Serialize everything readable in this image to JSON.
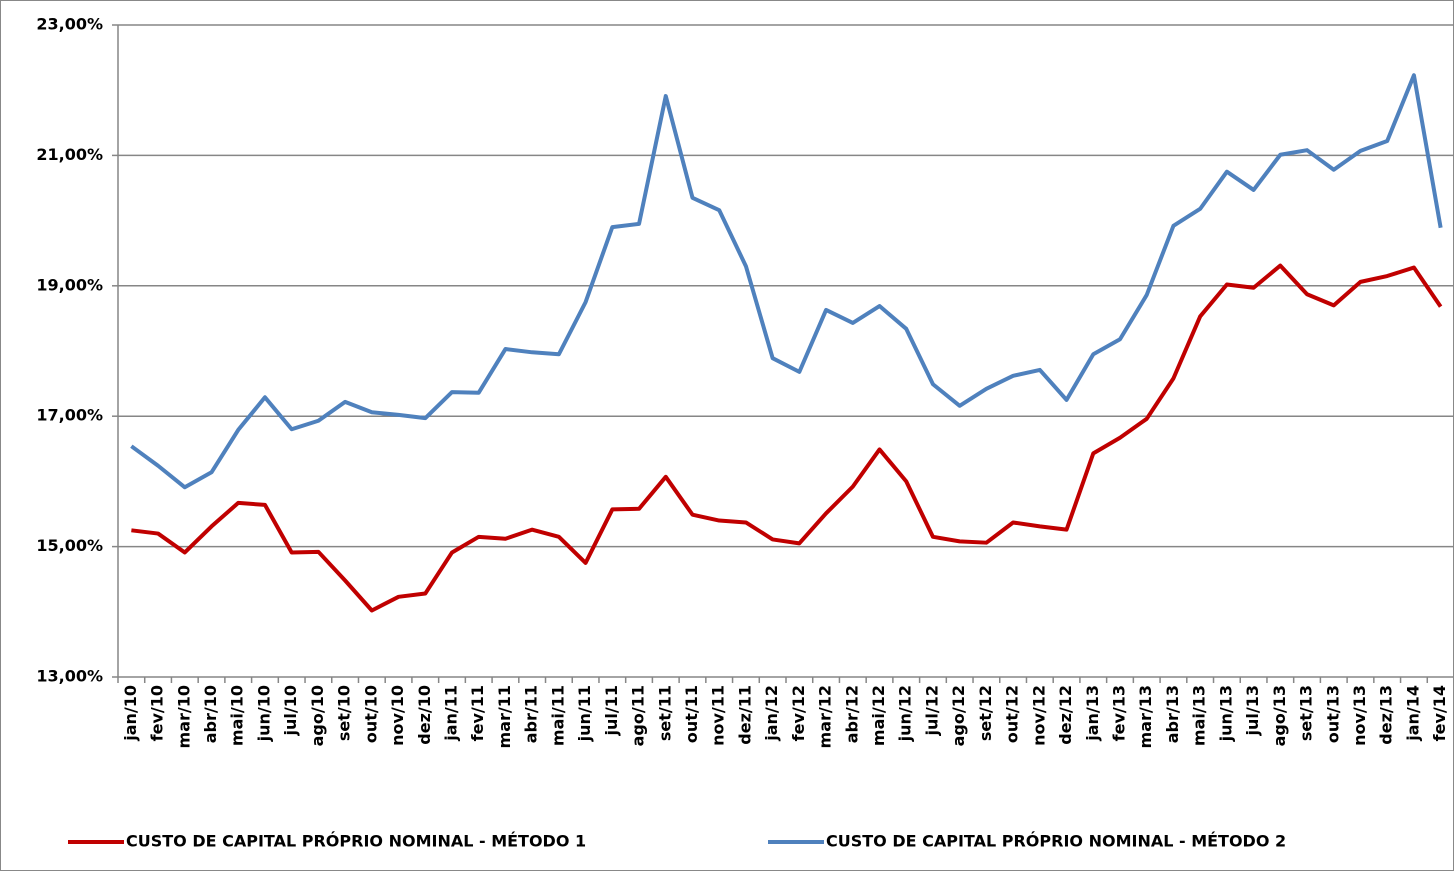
{
  "chart_data": {
    "type": "line",
    "categories": [
      "jan/10",
      "fev/10",
      "mar/10",
      "abr/10",
      "mai/10",
      "jun/10",
      "jul/10",
      "ago/10",
      "set/10",
      "out/10",
      "nov/10",
      "dez/10",
      "jan/11",
      "fev/11",
      "mar/11",
      "abr/11",
      "mai/11",
      "jun/11",
      "jul/11",
      "ago/11",
      "set/11",
      "out/11",
      "nov/11",
      "dez/11",
      "jan/12",
      "fev/12",
      "mar/12",
      "abr/12",
      "mai/12",
      "jun/12",
      "jul/12",
      "ago/12",
      "set/12",
      "out/12",
      "nov/12",
      "dez/12",
      "jan/13",
      "fev/13",
      "mar/13",
      "abr/13",
      "mai/13",
      "jun/13",
      "jul/13",
      "ago/13",
      "set/13",
      "out/13",
      "nov/13",
      "dez/13",
      "jan/14",
      "fev/14"
    ],
    "series": [
      {
        "name": "CUSTO DE CAPITAL PRÓPRIO NOMINAL - MÉTODO 1",
        "color": "#c00000",
        "values": [
          15.25,
          15.2,
          14.91,
          15.31,
          15.67,
          15.64,
          14.91,
          14.92,
          14.48,
          14.02,
          14.23,
          14.28,
          14.91,
          15.15,
          15.12,
          15.26,
          15.15,
          14.75,
          15.57,
          15.58,
          16.07,
          15.49,
          15.4,
          15.37,
          15.11,
          15.05,
          15.51,
          15.92,
          16.49,
          16.0,
          15.15,
          15.08,
          15.06,
          15.37,
          15.31,
          15.26,
          16.43,
          16.67,
          16.96,
          17.58,
          18.53,
          19.02,
          18.97,
          19.31,
          18.87,
          18.7,
          19.06,
          19.15,
          19.28,
          18.68
        ]
      },
      {
        "name": "CUSTO DE CAPITAL PRÓPRIO NOMINAL - MÉTODO 2",
        "color": "#4f81bd",
        "values": [
          16.54,
          16.24,
          15.91,
          16.14,
          16.79,
          17.29,
          16.8,
          16.93,
          17.22,
          17.06,
          17.02,
          16.97,
          17.37,
          17.36,
          18.03,
          17.98,
          17.95,
          18.75,
          19.9,
          19.95,
          21.91,
          20.35,
          20.16,
          19.3,
          17.89,
          17.68,
          18.63,
          18.43,
          18.69,
          18.34,
          17.49,
          17.16,
          17.42,
          17.62,
          17.71,
          17.25,
          17.95,
          18.18,
          18.86,
          19.92,
          20.18,
          20.75,
          20.47,
          21.01,
          21.08,
          20.78,
          21.07,
          21.22,
          22.23,
          19.89
        ]
      }
    ],
    "ylim": [
      13,
      23
    ],
    "yticks": [
      {
        "value": 13,
        "label": "13,00%"
      },
      {
        "value": 15,
        "label": "15,00%"
      },
      {
        "value": 17,
        "label": "17,00%"
      },
      {
        "value": 19,
        "label": "19,00%"
      },
      {
        "value": 21,
        "label": "21,00%"
      },
      {
        "value": 23,
        "label": "23,00%"
      }
    ],
    "grid": true,
    "legend": "bottom"
  }
}
